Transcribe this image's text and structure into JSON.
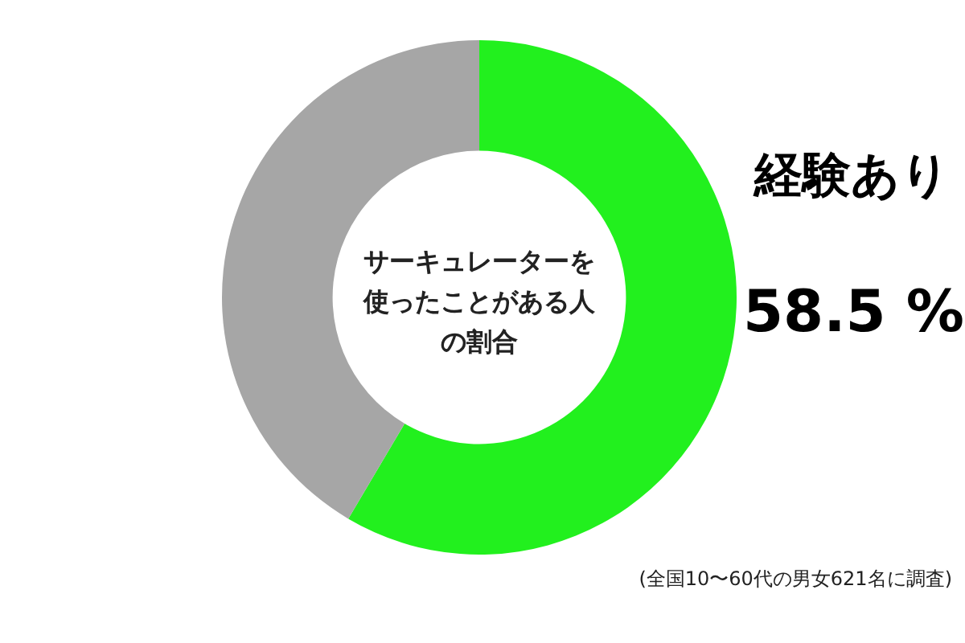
{
  "chart_data": {
    "type": "donut",
    "title": "サーキュレーターを使ったことがある人の割合",
    "categories": [
      "経験あり",
      null
    ],
    "values": [
      58.5,
      41.5
    ],
    "colors": [
      "#22f01e",
      "#a6a6a6"
    ],
    "value_labels": [
      "58.5 %",
      null
    ],
    "annotations": [
      "(全国10〜60代の男女621名に調査)"
    ]
  }
}
